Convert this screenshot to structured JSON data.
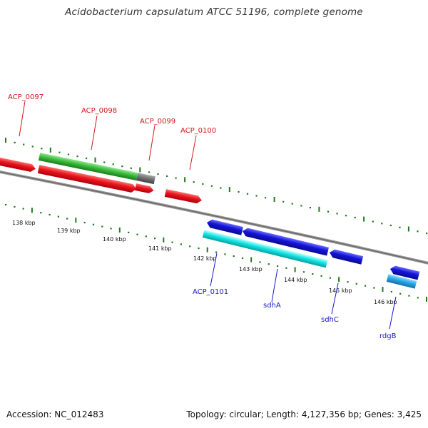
{
  "header": {
    "title": "Acidobacterium capsulatum ATCC 51196, complete genome"
  },
  "footer": {
    "accession": "Accession: NC_012483",
    "topology": "Topology: circular; Length: 4,127,356 bp; Genes: 3,425"
  },
  "colors": {
    "forward_gene": "#e8141e",
    "reverse_gene": "#1414d8",
    "cds_green": "#3cbc3c",
    "cds_gray": "#6e6e6e",
    "cds_cyan": "#14e6e6",
    "cds_light_blue": "#28a8e6",
    "tick_green": "#1e7a1e",
    "backbone": "#7a7a7a",
    "label_red": "#d01818",
    "label_blue": "#1818c8"
  },
  "kbp_ticks": [
    "138 kbp",
    "139 kbp",
    "140 kbp",
    "141 kbp",
    "142 kbp",
    "143 kbp",
    "144 kbp",
    "145 kbp",
    "146 kbp"
  ],
  "gene_labels": {
    "forward": [
      "ACP_0097",
      "ACP_0098",
      "ACP_0099",
      "ACP_0100"
    ],
    "reverse": [
      "ACP_0101",
      "sdhA",
      "sdhC",
      "rdgB"
    ]
  }
}
